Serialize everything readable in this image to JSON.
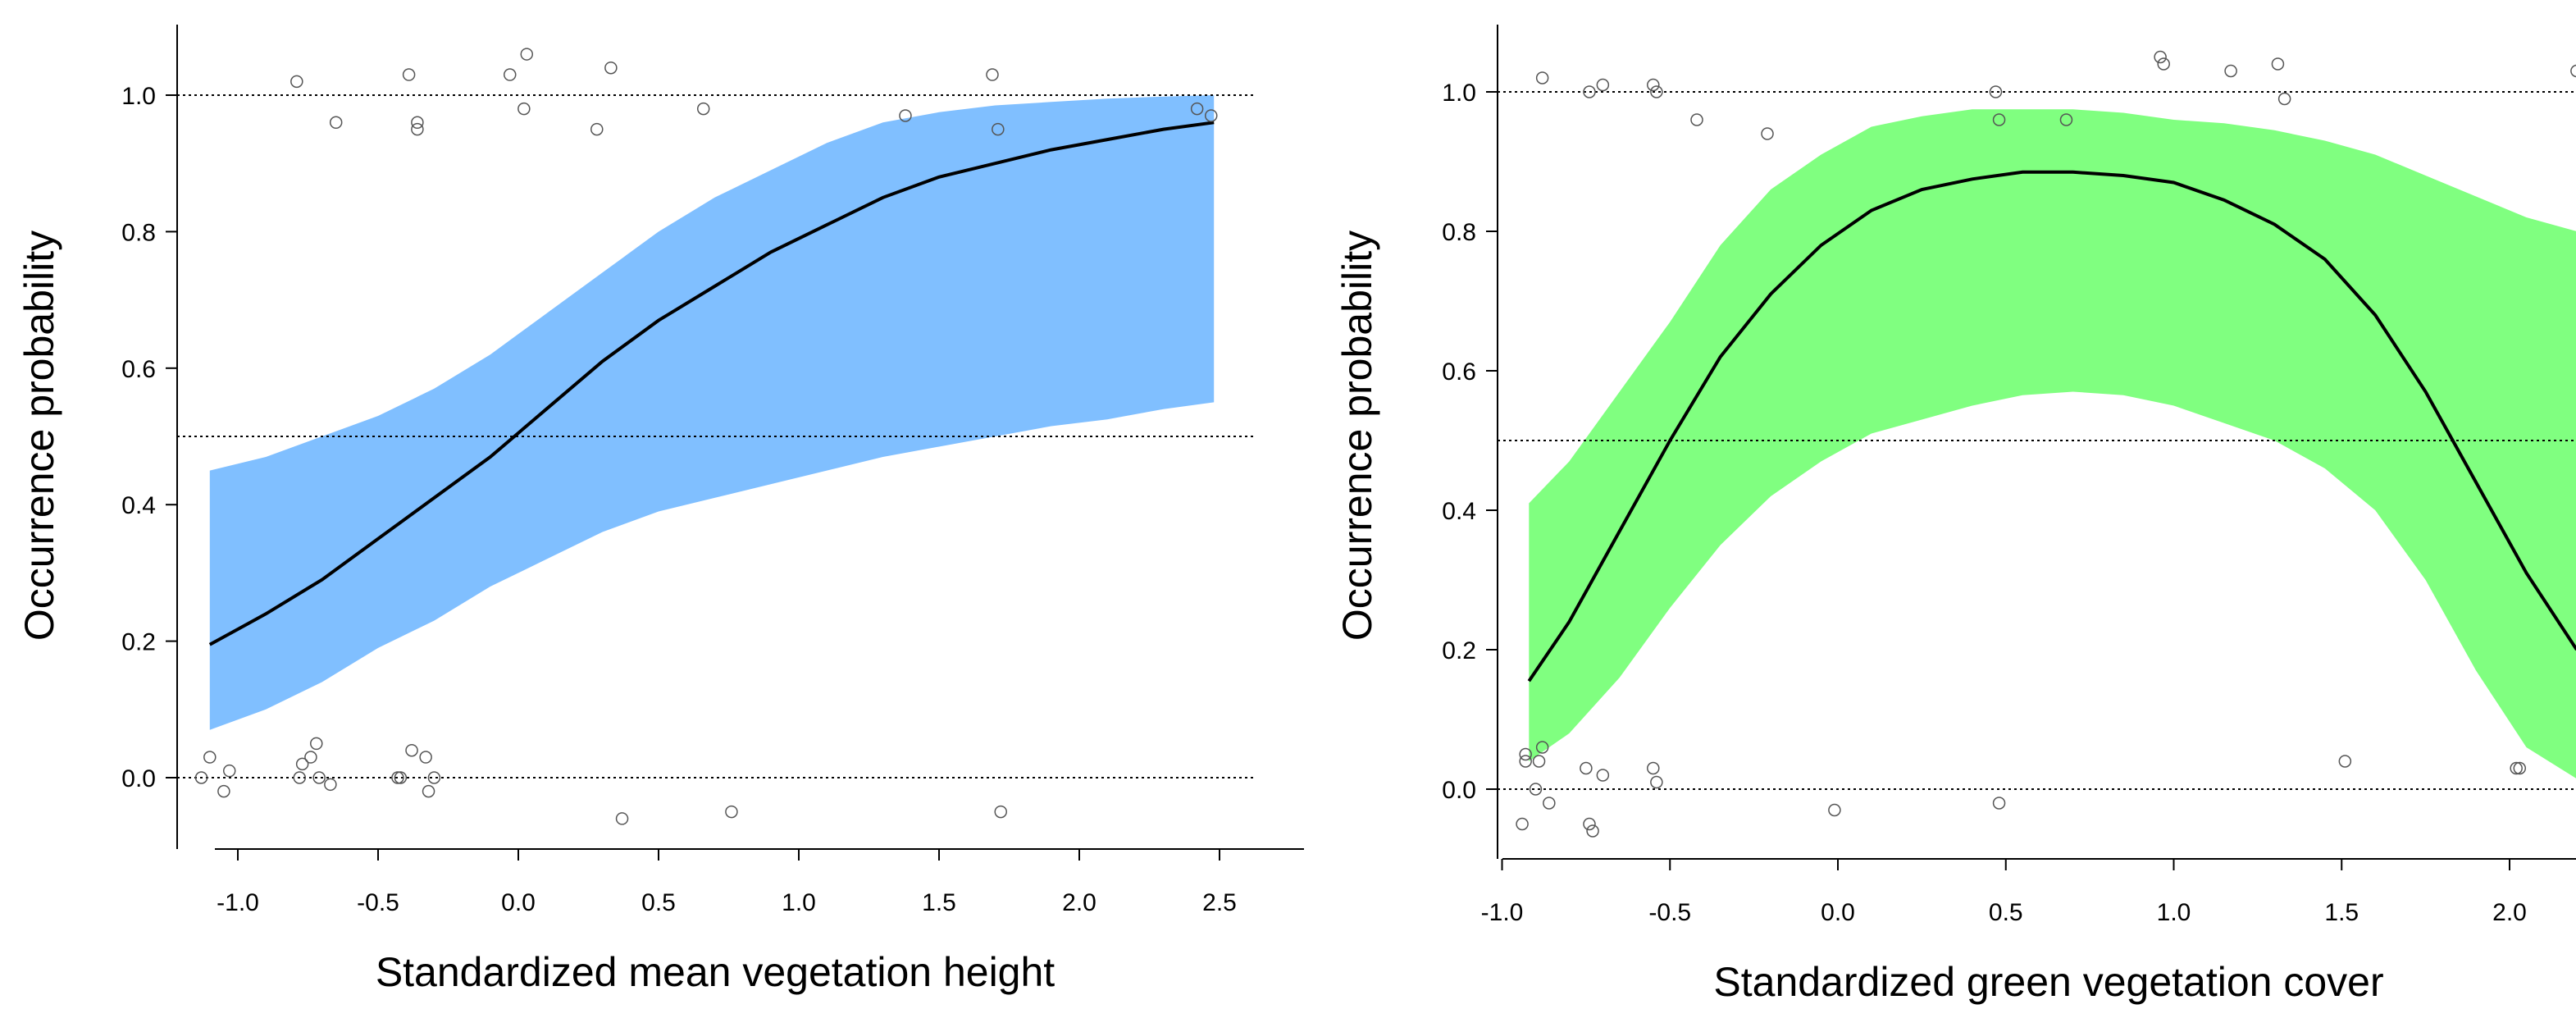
{
  "chart_data": [
    {
      "type": "line",
      "title": "",
      "xlabel": "Standardized mean vegetation height",
      "ylabel": "Occurrence probability",
      "xlim": [
        -1.2,
        2.62
      ],
      "ylim": [
        -0.1,
        1.1
      ],
      "xticks": [
        -1.0,
        -0.5,
        0.0,
        0.5,
        1.0,
        1.5,
        2.0,
        2.5
      ],
      "xtick_labels": [
        "-1.0",
        "-0.5",
        "0.0",
        "0.5",
        "1.0",
        "1.5",
        "2.0",
        "2.5"
      ],
      "yticks": [
        0.0,
        0.2,
        0.4,
        0.6,
        0.8,
        1.0
      ],
      "ytick_labels": [
        "0.0",
        "0.2",
        "0.4",
        "0.6",
        "0.8",
        "1.0"
      ],
      "reference_lines": [
        0.0,
        0.5,
        1.0
      ],
      "band_color": "#80bfff",
      "line_color": "#000000",
      "x": [
        -1.1,
        -0.9,
        -0.7,
        -0.5,
        -0.3,
        -0.1,
        0.1,
        0.3,
        0.5,
        0.7,
        0.9,
        1.1,
        1.3,
        1.5,
        1.7,
        1.9,
        2.1,
        2.3,
        2.48
      ],
      "fit": [
        0.195,
        0.24,
        0.29,
        0.35,
        0.41,
        0.47,
        0.54,
        0.61,
        0.67,
        0.72,
        0.77,
        0.81,
        0.85,
        0.88,
        0.9,
        0.92,
        0.935,
        0.95,
        0.96
      ],
      "lower": [
        0.07,
        0.1,
        0.14,
        0.19,
        0.23,
        0.28,
        0.32,
        0.36,
        0.39,
        0.41,
        0.43,
        0.45,
        0.47,
        0.485,
        0.5,
        0.515,
        0.525,
        0.54,
        0.55
      ],
      "upper": [
        0.45,
        0.47,
        0.5,
        0.53,
        0.57,
        0.62,
        0.68,
        0.74,
        0.8,
        0.85,
        0.89,
        0.93,
        0.96,
        0.975,
        0.985,
        0.99,
        0.995,
        0.998,
        1.0
      ],
      "points": [
        [
          -0.79,
          1.02
        ],
        [
          -0.65,
          0.96
        ],
        [
          -0.39,
          1.03
        ],
        [
          -0.36,
          0.96
        ],
        [
          -0.36,
          0.95
        ],
        [
          -0.03,
          1.03
        ],
        [
          0.03,
          1.06
        ],
        [
          0.02,
          0.98
        ],
        [
          0.28,
          0.95
        ],
        [
          0.33,
          1.04
        ],
        [
          0.66,
          0.98
        ],
        [
          1.38,
          0.97
        ],
        [
          1.69,
          1.03
        ],
        [
          1.71,
          0.95
        ],
        [
          2.42,
          0.98
        ],
        [
          2.47,
          0.97
        ],
        [
          -1.13,
          0.0
        ],
        [
          -1.1,
          0.03
        ],
        [
          -1.03,
          0.01
        ],
        [
          -1.05,
          -0.02
        ],
        [
          -0.78,
          0.0
        ],
        [
          -0.77,
          0.02
        ],
        [
          -0.74,
          0.03
        ],
        [
          -0.72,
          0.05
        ],
        [
          -0.71,
          0.0
        ],
        [
          -0.67,
          -0.01
        ],
        [
          -0.43,
          0.0
        ],
        [
          -0.42,
          0.0
        ],
        [
          -0.38,
          0.04
        ],
        [
          -0.33,
          0.03
        ],
        [
          -0.32,
          -0.02
        ],
        [
          -0.3,
          0.0
        ],
        [
          0.37,
          -0.06
        ],
        [
          0.76,
          -0.05
        ],
        [
          1.72,
          -0.05
        ]
      ]
    },
    {
      "type": "line",
      "title": "",
      "xlabel": "Standardized green vegetation cover",
      "ylabel": "Occurrence probability",
      "xlim": [
        -1.0,
        2.2
      ],
      "ylim": [
        -0.1,
        1.1
      ],
      "xticks": [
        -1.0,
        -0.5,
        0.0,
        0.5,
        1.0,
        1.5,
        2.0
      ],
      "xtick_labels": [
        "-1.0",
        "-0.5",
        "0.0",
        "0.5",
        "1.0",
        "1.5",
        "2.0"
      ],
      "yticks": [
        0.0,
        0.2,
        0.4,
        0.6,
        0.8,
        1.0
      ],
      "ytick_labels": [
        "0.0",
        "0.2",
        "0.4",
        "0.6",
        "0.8",
        "1.0"
      ],
      "reference_lines": [
        0.0,
        0.5,
        1.0
      ],
      "band_color": "#80ff80",
      "line_color": "#000000",
      "x": [
        -0.92,
        -0.8,
        -0.65,
        -0.5,
        -0.35,
        -0.2,
        -0.05,
        0.1,
        0.25,
        0.4,
        0.55,
        0.7,
        0.85,
        1.0,
        1.15,
        1.3,
        1.45,
        1.6,
        1.75,
        1.9,
        2.05,
        2.2
      ],
      "fit": [
        0.155,
        0.24,
        0.37,
        0.5,
        0.62,
        0.71,
        0.78,
        0.83,
        0.86,
        0.875,
        0.885,
        0.885,
        0.88,
        0.87,
        0.845,
        0.81,
        0.76,
        0.68,
        0.57,
        0.44,
        0.31,
        0.2
      ],
      "lower": [
        0.04,
        0.08,
        0.16,
        0.26,
        0.35,
        0.42,
        0.47,
        0.51,
        0.53,
        0.55,
        0.565,
        0.57,
        0.565,
        0.55,
        0.525,
        0.5,
        0.46,
        0.4,
        0.3,
        0.17,
        0.06,
        0.015
      ],
      "upper": [
        0.41,
        0.47,
        0.57,
        0.67,
        0.78,
        0.86,
        0.91,
        0.95,
        0.965,
        0.975,
        0.975,
        0.975,
        0.97,
        0.96,
        0.955,
        0.945,
        0.93,
        0.91,
        0.88,
        0.85,
        0.82,
        0.8
      ],
      "points": [
        [
          -0.88,
          1.02
        ],
        [
          -0.74,
          1.0
        ],
        [
          -0.7,
          1.01
        ],
        [
          -0.55,
          1.01
        ],
        [
          -0.54,
          1.0
        ],
        [
          -0.42,
          0.96
        ],
        [
          -0.21,
          0.94
        ],
        [
          0.47,
          1.0
        ],
        [
          0.48,
          0.96
        ],
        [
          0.68,
          0.96
        ],
        [
          0.96,
          1.05
        ],
        [
          0.97,
          1.04
        ],
        [
          1.17,
          1.03
        ],
        [
          1.31,
          1.04
        ],
        [
          1.33,
          0.99
        ],
        [
          2.2,
          1.03
        ],
        [
          -0.93,
          0.05
        ],
        [
          -0.93,
          0.04
        ],
        [
          -0.89,
          0.04
        ],
        [
          -0.88,
          0.06
        ],
        [
          -0.86,
          -0.02
        ],
        [
          -0.9,
          0.0
        ],
        [
          -0.75,
          0.03
        ],
        [
          -0.74,
          -0.05
        ],
        [
          -0.73,
          -0.06
        ],
        [
          -0.7,
          0.02
        ],
        [
          -0.55,
          0.03
        ],
        [
          -0.54,
          0.01
        ],
        [
          -0.94,
          -0.05
        ],
        [
          -0.01,
          -0.03
        ],
        [
          0.48,
          -0.02
        ],
        [
          1.51,
          0.04
        ],
        [
          2.02,
          0.03
        ],
        [
          2.03,
          0.03
        ]
      ]
    }
  ]
}
